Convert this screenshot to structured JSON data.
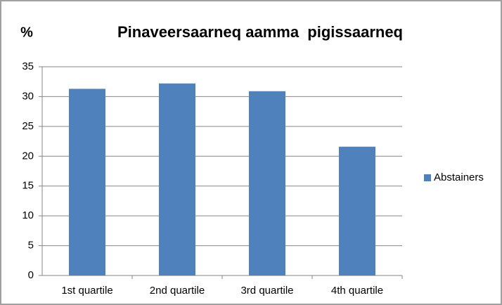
{
  "chart_data": {
    "type": "bar",
    "title": "Pinaveersaarneq aamma  pigissaarneq",
    "y_label": "%",
    "categories": [
      "1st quartile",
      "2nd quartile",
      "3rd quartile",
      "4th quartile"
    ],
    "series": [
      {
        "name": "Abstainers",
        "color": "#4f81bd",
        "values": [
          31.3,
          32.2,
          30.9,
          21.6
        ]
      }
    ],
    "ylim": [
      0,
      35
    ],
    "yticks": [
      0,
      5,
      10,
      15,
      20,
      25,
      30,
      35
    ],
    "grid": true,
    "legend": "right"
  }
}
